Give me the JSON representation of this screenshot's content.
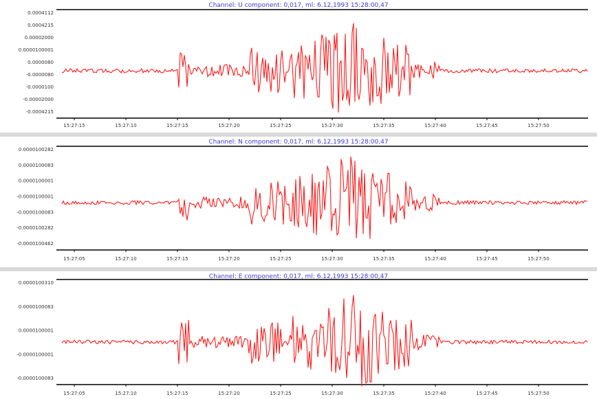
{
  "colors": {
    "trace": "#ff1a1a",
    "title": "#3b3bd6",
    "axis": "#000000",
    "label": "#333333"
  },
  "chart_data": [
    {
      "type": "line",
      "title": "Channel: U component: 0,017, ml: 6.12,1993 15:28:00,47",
      "ylabels": [
        "0.0004112",
        "0.0004215",
        "0.00002000",
        "0.0000100001",
        "0.0000080",
        "-0.0000080",
        "-0.0000100",
        "-0.00002000",
        "-0.0004215"
      ],
      "xlabels": [
        "15:27:15",
        "15:27:10",
        "15:27:15",
        "15:27:20",
        "15:27:25",
        "15:27:30",
        "15:27:35",
        "15:27:40",
        "15:27:45",
        "15:27:50"
      ],
      "ylim": [
        -1,
        1
      ],
      "amp_seed": 1
    },
    {
      "type": "line",
      "title": "Channel: N component: 0,017, ml: 6.12,1993 15:28:00,47",
      "ylabels": [
        "0.0000100282",
        "0.0000100083",
        "0.0000100001",
        "-0.0000100001",
        "-0.0000100083",
        "-0.0000100282",
        "-0.0000100462"
      ],
      "xlabels": [
        "15:27:05",
        "15:27:10",
        "15:27:15",
        "15:27:20",
        "15:27:25",
        "15:27:30",
        "15:27:35",
        "15:27:40",
        "15:27:45",
        "15:27:50"
      ],
      "ylim": [
        -1,
        1
      ],
      "amp_seed": 2
    },
    {
      "type": "line",
      "title": "Channel: E component: 0,017, ml: 6.12,1993 15:28:00,47",
      "ylabels": [
        "0.0000100310",
        "0.0000100083",
        "0.0000100001",
        "-0.0000100001",
        "-0.0000100083"
      ],
      "xlabels": [
        "15:27:05",
        "15:27:10",
        "15:27:15",
        "15:27:20",
        "15:27:25",
        "15:27:30",
        "15:27:35",
        "15:27:40",
        "15:27:45",
        "15:27:50"
      ],
      "ylim": [
        -1,
        1
      ],
      "amp_seed": 3
    }
  ]
}
